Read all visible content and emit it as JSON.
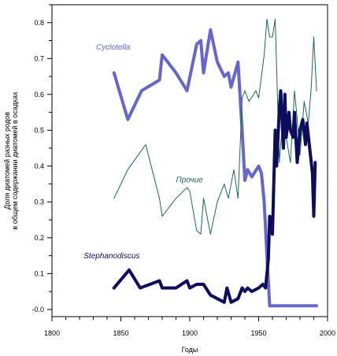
{
  "chart_data": {
    "type": "line",
    "title": "",
    "xlabel": "Годы",
    "ylabel_lines": [
      "Доля диатомей разных родов",
      "в общем содержании диатомей в осадках"
    ],
    "xlim": [
      1800,
      2000
    ],
    "ylim": [
      -0.02,
      0.85
    ],
    "x_ticks": [
      1800,
      1850,
      1900,
      1950,
      2000
    ],
    "y_ticks": [
      0.0,
      0.1,
      0.2,
      0.3,
      0.4,
      0.5,
      0.6,
      0.7,
      0.8
    ],
    "y_tick_labels": [
      "-0.0",
      "0.1",
      "0.2",
      "0.3",
      "0.4",
      "0.5",
      "0.6",
      "0.7",
      "0.8"
    ],
    "grid": false,
    "series": [
      {
        "name": "Cyclotella",
        "color": "#6666cc",
        "x": [
          1845,
          1855,
          1865,
          1878,
          1880,
          1890,
          1898,
          1905,
          1908,
          1910,
          1915,
          1920,
          1925,
          1928,
          1930,
          1935,
          1938,
          1940,
          1942,
          1945,
          1950,
          1952,
          1954,
          1956,
          1958,
          1960,
          1970,
          1980,
          1990,
          1992
        ],
        "values": [
          0.66,
          0.53,
          0.61,
          0.64,
          0.71,
          0.66,
          0.61,
          0.74,
          0.75,
          0.66,
          0.78,
          0.69,
          0.65,
          0.66,
          0.62,
          0.69,
          0.5,
          0.36,
          0.39,
          0.37,
          0.4,
          0.38,
          0.3,
          0.15,
          0.01,
          0.01,
          0.01,
          0.01,
          0.01,
          0.01
        ]
      },
      {
        "name": "Прочие",
        "color": "#1a6b4a",
        "x": [
          1845,
          1855,
          1868,
          1878,
          1880,
          1890,
          1898,
          1900,
          1905,
          1908,
          1910,
          1915,
          1920,
          1925,
          1928,
          1932,
          1935,
          1938,
          1940,
          1943,
          1948,
          1950,
          1954,
          1956,
          1958,
          1960,
          1962,
          1965,
          1968,
          1970,
          1973,
          1976,
          1978,
          1980,
          1983,
          1986,
          1988,
          1990,
          1992
        ],
        "values": [
          0.31,
          0.39,
          0.46,
          0.31,
          0.26,
          0.31,
          0.34,
          0.33,
          0.22,
          0.21,
          0.31,
          0.21,
          0.3,
          0.35,
          0.31,
          0.39,
          0.31,
          0.59,
          0.61,
          0.58,
          0.61,
          0.59,
          0.71,
          0.81,
          0.76,
          0.76,
          0.81,
          0.41,
          0.56,
          0.48,
          0.41,
          0.61,
          0.53,
          0.43,
          0.58,
          0.52,
          0.61,
          0.76,
          0.61
        ]
      },
      {
        "name": "Stephanodiscus",
        "color": "#0d0d5c",
        "x": [
          1845,
          1856,
          1864,
          1878,
          1880,
          1890,
          1898,
          1900,
          1905,
          1910,
          1915,
          1920,
          1925,
          1927,
          1930,
          1935,
          1938,
          1940,
          1942,
          1945,
          1950,
          1953,
          1955,
          1957,
          1958,
          1960,
          1962,
          1963,
          1965,
          1966,
          1968,
          1969,
          1970,
          1972,
          1973,
          1975,
          1976,
          1978,
          1980,
          1982,
          1984,
          1985,
          1987,
          1989,
          1990,
          1991
        ],
        "values": [
          0.06,
          0.11,
          0.06,
          0.08,
          0.06,
          0.06,
          0.08,
          0.06,
          0.07,
          0.07,
          0.04,
          0.03,
          0.02,
          0.06,
          0.02,
          0.03,
          0.06,
          0.05,
          0.06,
          0.05,
          0.06,
          0.07,
          0.06,
          0.14,
          0.26,
          0.21,
          0.5,
          0.4,
          0.56,
          0.61,
          0.45,
          0.6,
          0.48,
          0.55,
          0.5,
          0.48,
          0.55,
          0.41,
          0.5,
          0.53,
          0.46,
          0.52,
          0.45,
          0.38,
          0.26,
          0.41
        ]
      }
    ],
    "annotations": [
      {
        "text": "Cyclotella",
        "series": "Cyclotella",
        "x": 1832,
        "y": 0.725
      },
      {
        "text": "Прочие",
        "series": "Прочие",
        "x": 1890,
        "y": 0.355
      },
      {
        "text": "Stephanodiscus",
        "series": "Stephanodiscus",
        "x": 1823,
        "y": 0.143
      }
    ]
  }
}
